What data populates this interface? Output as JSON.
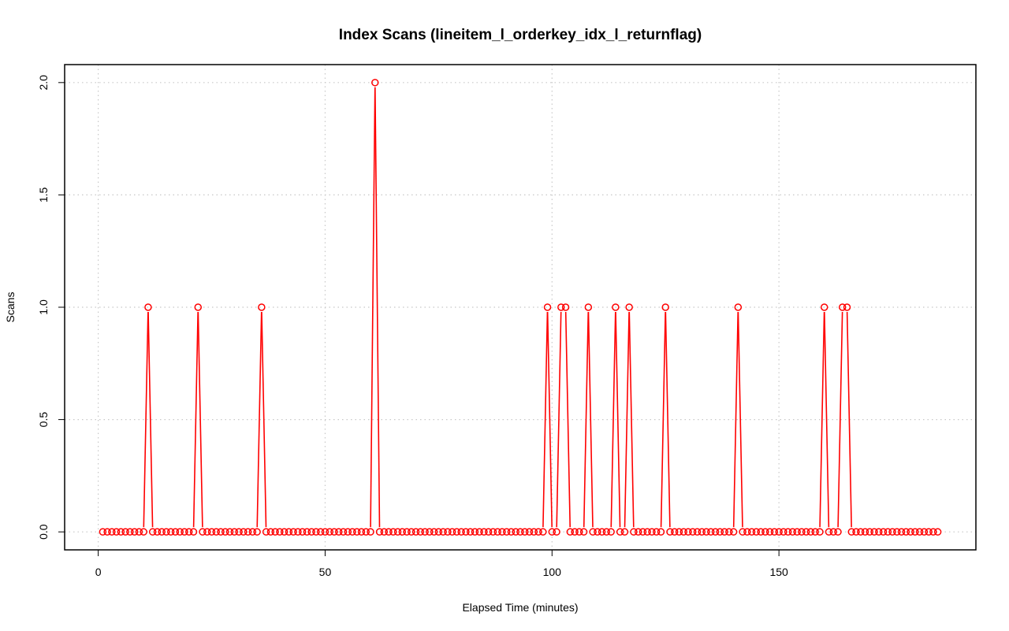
{
  "chart_data": {
    "type": "line",
    "title": "Index Scans (lineitem_l_orderkey_idx_l_returnflag)",
    "xlabel": "Elapsed Time (minutes)",
    "ylabel": "Scans",
    "xlim": [
      -7.4,
      193.4
    ],
    "ylim": [
      -0.08,
      2.08
    ],
    "x_ticks": [
      0,
      50,
      100,
      150
    ],
    "y_ticks": [
      0.0,
      0.5,
      1.0,
      1.5,
      2.0
    ],
    "x_tick_labels": [
      "0",
      "50",
      "100",
      "150"
    ],
    "y_tick_labels": [
      "0.0",
      "0.5",
      "1.0",
      "1.5",
      "2.0"
    ],
    "grid": true,
    "legend": "none",
    "line_color": "#ff0000",
    "marker": "open-circle",
    "x": [
      1,
      2,
      3,
      4,
      5,
      6,
      7,
      8,
      9,
      10,
      11,
      12,
      13,
      14,
      15,
      16,
      17,
      18,
      19,
      20,
      21,
      22,
      23,
      24,
      25,
      26,
      27,
      28,
      29,
      30,
      31,
      32,
      33,
      34,
      35,
      36,
      37,
      38,
      39,
      40,
      41,
      42,
      43,
      44,
      45,
      46,
      47,
      48,
      49,
      50,
      51,
      52,
      53,
      54,
      55,
      56,
      57,
      58,
      59,
      60,
      61,
      62,
      63,
      64,
      65,
      66,
      67,
      68,
      69,
      70,
      71,
      72,
      73,
      74,
      75,
      76,
      77,
      78,
      79,
      80,
      81,
      82,
      83,
      84,
      85,
      86,
      87,
      88,
      89,
      90,
      91,
      92,
      93,
      94,
      95,
      96,
      97,
      98,
      99,
      100,
      101,
      102,
      103,
      104,
      105,
      106,
      107,
      108,
      109,
      110,
      111,
      112,
      113,
      114,
      115,
      116,
      117,
      118,
      119,
      120,
      121,
      122,
      123,
      124,
      125,
      126,
      127,
      128,
      129,
      130,
      131,
      132,
      133,
      134,
      135,
      136,
      137,
      138,
      139,
      140,
      141,
      142,
      143,
      144,
      145,
      146,
      147,
      148,
      149,
      150,
      151,
      152,
      153,
      154,
      155,
      156,
      157,
      158,
      159,
      160,
      161,
      162,
      163,
      164,
      165,
      166,
      167,
      168,
      169,
      170,
      171,
      172,
      173,
      174,
      175,
      176,
      177,
      178,
      179,
      180,
      181,
      182,
      183,
      184,
      185
    ],
    "y": [
      0,
      0,
      0,
      0,
      0,
      0,
      0,
      0,
      0,
      0,
      1,
      0,
      0,
      0,
      0,
      0,
      0,
      0,
      0,
      0,
      0,
      1,
      0,
      0,
      0,
      0,
      0,
      0,
      0,
      0,
      0,
      0,
      0,
      0,
      0,
      1,
      0,
      0,
      0,
      0,
      0,
      0,
      0,
      0,
      0,
      0,
      0,
      0,
      0,
      0,
      0,
      0,
      0,
      0,
      0,
      0,
      0,
      0,
      0,
      0,
      2,
      0,
      0,
      0,
      0,
      0,
      0,
      0,
      0,
      0,
      0,
      0,
      0,
      0,
      0,
      0,
      0,
      0,
      0,
      0,
      0,
      0,
      0,
      0,
      0,
      0,
      0,
      0,
      0,
      0,
      0,
      0,
      0,
      0,
      0,
      0,
      0,
      0,
      1,
      0,
      0,
      1,
      1,
      0,
      0,
      0,
      0,
      1,
      0,
      0,
      0,
      0,
      0,
      1,
      0,
      0,
      1,
      0,
      0,
      0,
      0,
      0,
      0,
      0,
      1,
      0,
      0,
      0,
      0,
      0,
      0,
      0,
      0,
      0,
      0,
      0,
      0,
      0,
      0,
      0,
      1,
      0,
      0,
      0,
      0,
      0,
      0,
      0,
      0,
      0,
      0,
      0,
      0,
      0,
      0,
      0,
      0,
      0,
      0,
      1,
      0,
      0,
      0,
      1,
      1,
      0,
      0,
      0,
      0,
      0,
      0,
      0,
      0,
      0,
      0,
      0,
      0,
      0,
      0,
      0,
      0,
      0,
      0,
      0,
      0
    ]
  }
}
